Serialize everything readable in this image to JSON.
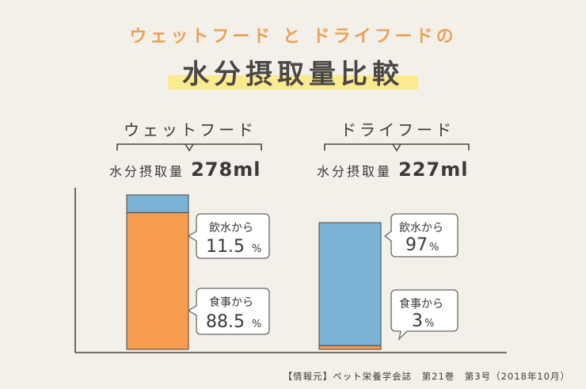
{
  "header": {
    "subtitle": "ウェットフード と ドライフードの",
    "title": "水分摂取量比較"
  },
  "chart_data": {
    "type": "bar",
    "stacked": true,
    "categories": [
      "ウェットフード",
      "ドライフード"
    ],
    "intake_label": "水分摂取量",
    "totals": [
      "278ml",
      "227ml"
    ],
    "series": [
      {
        "name": "食事から",
        "values": [
          88.5,
          3
        ],
        "color": "#f59c4e"
      },
      {
        "name": "飲水から",
        "values": [
          11.5,
          97
        ],
        "color": "#7bb3d6"
      }
    ],
    "units": "%"
  },
  "labels": {
    "wet": {
      "category": "ウェットフード",
      "intake_text": "水分摂取量",
      "intake_value": "278ml",
      "drink_label": "飲水から",
      "drink_value": "11.5",
      "food_label": "食事から",
      "food_value": "88.5",
      "pct": "%"
    },
    "dry": {
      "category": "ドライフード",
      "intake_text": "水分摂取量",
      "intake_value": "227ml",
      "drink_label": "飲水から",
      "drink_value": "97",
      "food_label": "食事から",
      "food_value": "3",
      "pct": "%"
    }
  },
  "source": "【情報元】ペット栄養学会誌　第21巻　第3号（2018年10月）"
}
